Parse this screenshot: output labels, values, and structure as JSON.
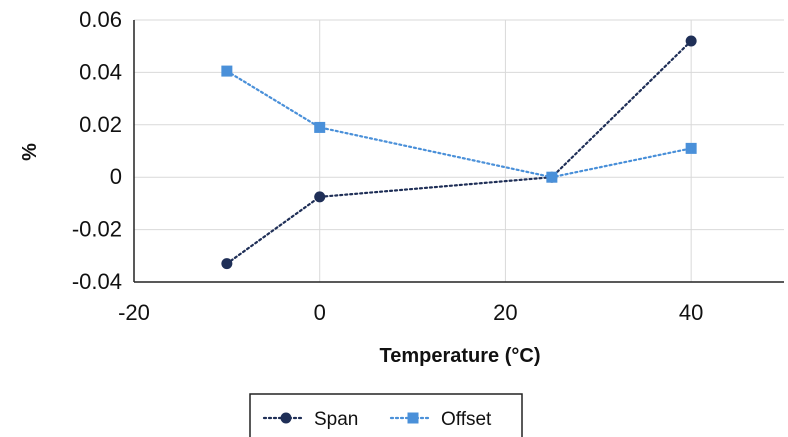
{
  "chart_data": {
    "type": "line",
    "title": "",
    "xlabel": "Temperature (°C)",
    "ylabel": "%",
    "xlim": [
      -20,
      50
    ],
    "ylim": [
      -0.04,
      0.06
    ],
    "xticks": [
      -20,
      0,
      20,
      40
    ],
    "xtick_labels": [
      "-20",
      "0",
      "20",
      "40"
    ],
    "yticks": [
      -0.04,
      -0.02,
      0,
      0.02,
      0.04,
      0.06
    ],
    "ytick_labels": [
      "-0.04",
      "-0.02",
      "0",
      "0.02",
      "0.04",
      "0.06"
    ],
    "grid": true,
    "legend_position": "bottom",
    "series": [
      {
        "name": "Span",
        "x": [
          -10,
          0,
          25,
          40
        ],
        "y": [
          -0.033,
          -0.0075,
          0,
          0.052
        ],
        "color": "#1f2f57",
        "marker": "circle",
        "line": "dotted"
      },
      {
        "name": "Offset",
        "x": [
          -10,
          0,
          25,
          40
        ],
        "y": [
          0.0405,
          0.019,
          0,
          0.011
        ],
        "color": "#4a90d9",
        "marker": "square",
        "line": "dotted"
      }
    ]
  }
}
